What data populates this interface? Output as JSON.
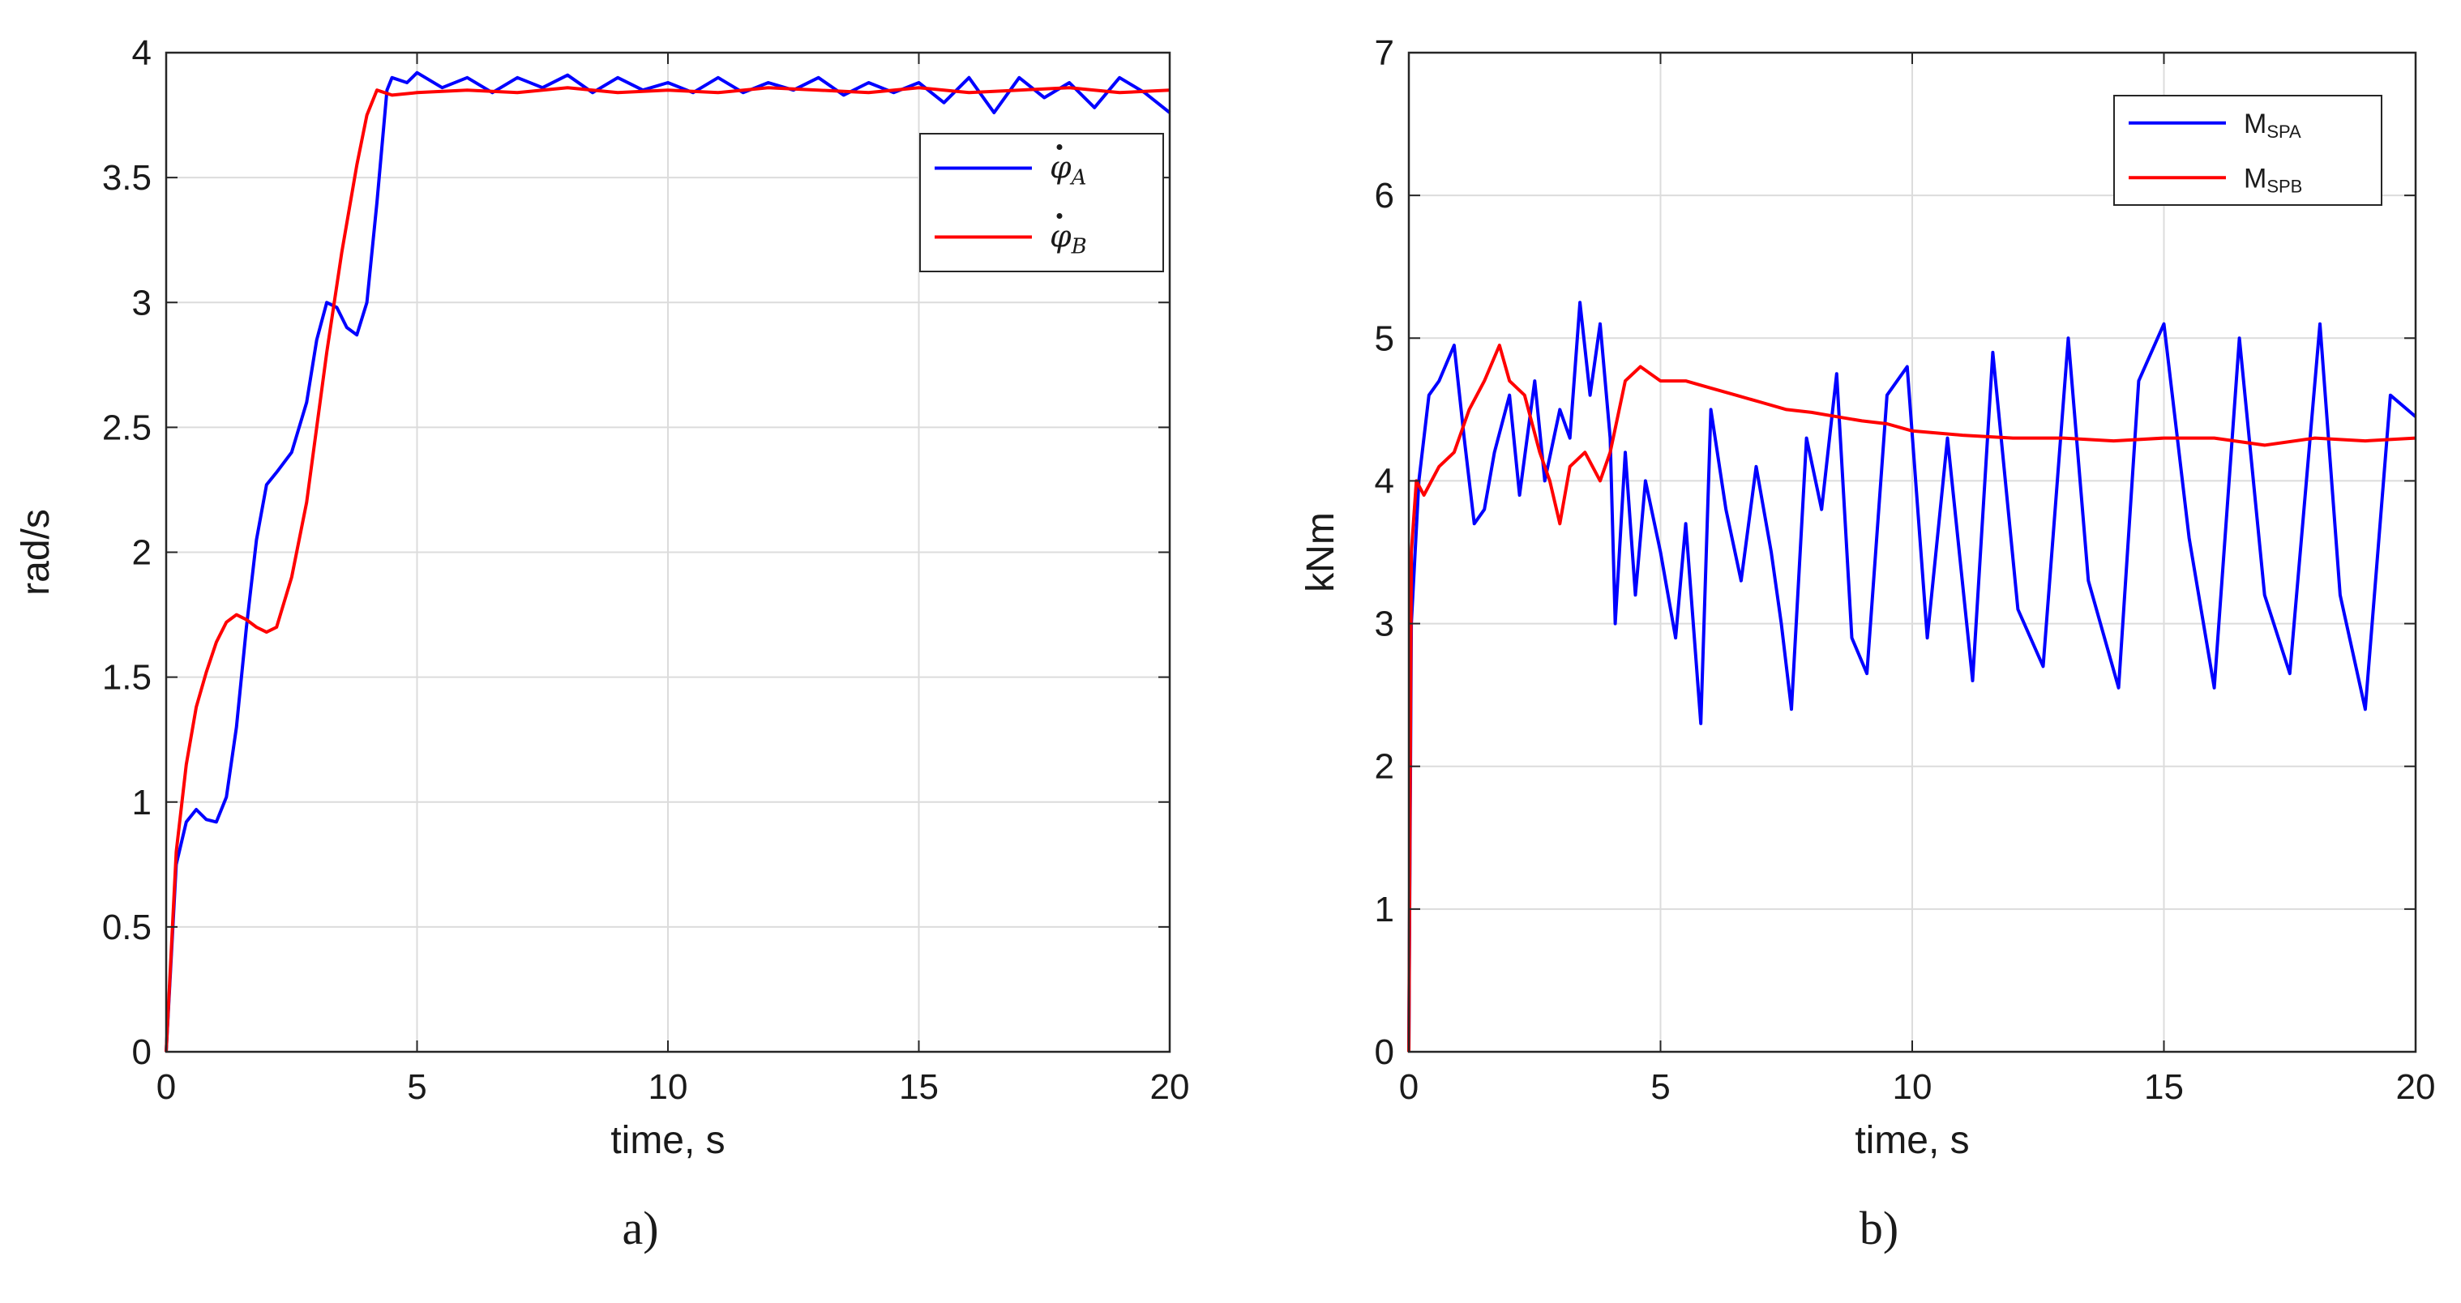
{
  "chart_data": [
    {
      "type": "line",
      "caption": "a)",
      "xlabel": "time, s",
      "ylabel": "rad/s",
      "xlim": [
        0,
        20
      ],
      "ylim": [
        0,
        4
      ],
      "xticks": [
        0,
        5,
        10,
        15,
        20
      ],
      "yticks": [
        0,
        0.5,
        1,
        1.5,
        2,
        2.5,
        3,
        3.5,
        4
      ],
      "grid": true,
      "legend_position": "top-right",
      "series": [
        {
          "name": "φ̇_A",
          "legend_base": "φ",
          "legend_sub": "A",
          "color": "#0000ff",
          "x": [
            0,
            0.2,
            0.4,
            0.6,
            0.8,
            1.0,
            1.2,
            1.4,
            1.6,
            1.8,
            2.0,
            2.2,
            2.5,
            2.8,
            3.0,
            3.2,
            3.4,
            3.6,
            3.8,
            4.0,
            4.2,
            4.4,
            4.5,
            4.8,
            5.0,
            5.5,
            6.0,
            6.5,
            7.0,
            7.5,
            8.0,
            8.5,
            9.0,
            9.5,
            10.0,
            10.5,
            11.0,
            11.5,
            12.0,
            12.5,
            13.0,
            13.5,
            14.0,
            14.5,
            15.0,
            15.5,
            16.0,
            16.5,
            17.0,
            17.5,
            18.0,
            18.5,
            19.0,
            19.5,
            20.0
          ],
          "y": [
            0,
            0.75,
            0.92,
            0.97,
            0.93,
            0.92,
            1.02,
            1.3,
            1.7,
            2.05,
            2.27,
            2.32,
            2.4,
            2.6,
            2.85,
            3.0,
            2.98,
            2.9,
            2.87,
            3.0,
            3.4,
            3.85,
            3.9,
            3.88,
            3.92,
            3.86,
            3.9,
            3.84,
            3.9,
            3.86,
            3.91,
            3.84,
            3.9,
            3.85,
            3.88,
            3.84,
            3.9,
            3.84,
            3.88,
            3.85,
            3.9,
            3.83,
            3.88,
            3.84,
            3.88,
            3.8,
            3.9,
            3.76,
            3.9,
            3.82,
            3.88,
            3.78,
            3.9,
            3.84,
            3.76
          ]
        },
        {
          "name": "φ̇_B",
          "legend_base": "φ",
          "legend_sub": "B",
          "color": "#ff0000",
          "x": [
            0,
            0.2,
            0.4,
            0.6,
            0.8,
            1.0,
            1.2,
            1.4,
            1.6,
            1.8,
            2.0,
            2.2,
            2.5,
            2.8,
            3.0,
            3.2,
            3.5,
            3.8,
            4.0,
            4.2,
            4.5,
            5.0,
            6.0,
            7.0,
            8.0,
            9.0,
            10.0,
            11.0,
            12.0,
            13.0,
            14.0,
            15.0,
            16.0,
            17.0,
            18.0,
            19.0,
            20.0
          ],
          "y": [
            0,
            0.8,
            1.15,
            1.38,
            1.52,
            1.64,
            1.72,
            1.75,
            1.73,
            1.7,
            1.68,
            1.7,
            1.9,
            2.2,
            2.5,
            2.8,
            3.2,
            3.55,
            3.75,
            3.85,
            3.83,
            3.84,
            3.85,
            3.84,
            3.86,
            3.84,
            3.85,
            3.84,
            3.86,
            3.85,
            3.84,
            3.86,
            3.84,
            3.85,
            3.86,
            3.84,
            3.85
          ]
        }
      ]
    },
    {
      "type": "line",
      "caption": "b)",
      "xlabel": "time, s",
      "ylabel": "kNm",
      "xlim": [
        0,
        20
      ],
      "ylim": [
        0,
        7
      ],
      "xticks": [
        0,
        5,
        10,
        15,
        20
      ],
      "yticks": [
        0,
        1,
        2,
        3,
        4,
        5,
        6,
        7
      ],
      "grid": true,
      "legend_position": "top-right",
      "series": [
        {
          "name": "M_SPA",
          "legend_base": "M",
          "legend_sub": "SPA",
          "color": "#0000ff",
          "x": [
            0,
            0.05,
            0.2,
            0.4,
            0.6,
            0.9,
            1.1,
            1.3,
            1.5,
            1.7,
            2.0,
            2.2,
            2.5,
            2.7,
            3.0,
            3.2,
            3.4,
            3.6,
            3.8,
            4.0,
            4.1,
            4.3,
            4.5,
            4.7,
            5.0,
            5.3,
            5.5,
            5.8,
            6.0,
            6.3,
            6.6,
            6.9,
            7.2,
            7.4,
            7.6,
            7.9,
            8.2,
            8.5,
            8.8,
            9.1,
            9.5,
            9.9,
            10.3,
            10.7,
            11.2,
            11.6,
            12.1,
            12.6,
            13.1,
            13.5,
            14.1,
            14.5,
            15.0,
            15.5,
            16.0,
            16.5,
            17.0,
            17.5,
            18.1,
            18.5,
            19.0,
            19.5,
            20.0
          ],
          "y": [
            0,
            3.0,
            4.0,
            4.6,
            4.7,
            4.95,
            4.3,
            3.7,
            3.8,
            4.2,
            4.6,
            3.9,
            4.7,
            4.0,
            4.5,
            4.3,
            5.25,
            4.6,
            5.1,
            4.3,
            3.0,
            4.2,
            3.2,
            4.0,
            3.5,
            2.9,
            3.7,
            2.3,
            4.5,
            3.8,
            3.3,
            4.1,
            3.5,
            3.0,
            2.4,
            4.3,
            3.8,
            4.75,
            2.9,
            2.65,
            4.6,
            4.8,
            2.9,
            4.3,
            2.6,
            4.9,
            3.1,
            2.7,
            5.0,
            3.3,
            2.55,
            4.7,
            5.1,
            3.6,
            2.55,
            5.0,
            3.2,
            2.65,
            5.1,
            3.2,
            2.4,
            4.6,
            4.45
          ]
        },
        {
          "name": "M_SPB",
          "legend_base": "M",
          "legend_sub": "SPB",
          "color": "#ff0000",
          "x": [
            0,
            0.05,
            0.15,
            0.3,
            0.6,
            0.9,
            1.2,
            1.5,
            1.8,
            2.0,
            2.3,
            2.6,
            2.8,
            3.0,
            3.2,
            3.5,
            3.8,
            4.0,
            4.3,
            4.6,
            5.0,
            5.5,
            6.0,
            6.5,
            7.0,
            7.5,
            8.0,
            8.5,
            9.0,
            9.5,
            10.0,
            11.0,
            12.0,
            13.0,
            14.0,
            15.0,
            16.0,
            17.0,
            18.0,
            19.0,
            20.0
          ],
          "y": [
            0,
            3.5,
            4.0,
            3.9,
            4.1,
            4.2,
            4.5,
            4.7,
            4.95,
            4.7,
            4.6,
            4.2,
            4.0,
            3.7,
            4.1,
            4.2,
            4.0,
            4.2,
            4.7,
            4.8,
            4.7,
            4.7,
            4.65,
            4.6,
            4.55,
            4.5,
            4.48,
            4.45,
            4.42,
            4.4,
            4.35,
            4.32,
            4.3,
            4.3,
            4.28,
            4.3,
            4.3,
            4.25,
            4.3,
            4.28,
            4.3
          ]
        }
      ]
    }
  ]
}
